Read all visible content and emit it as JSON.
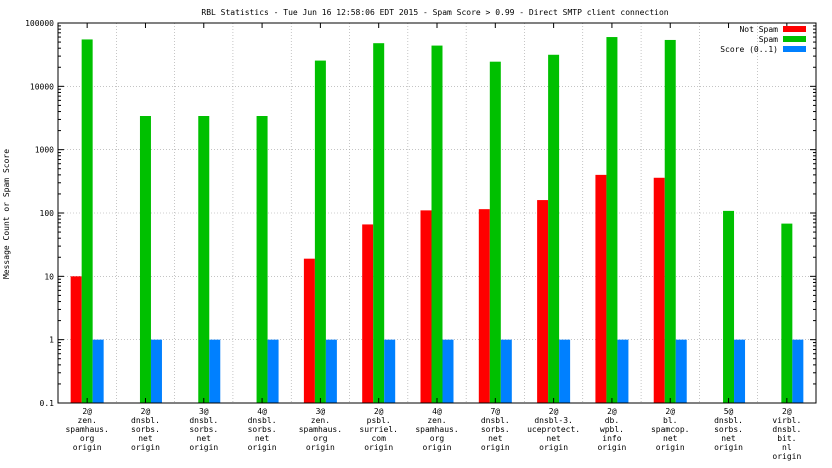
{
  "chart_data": {
    "type": "bar",
    "title": "RBL Statistics - Tue Jun 16 12:58:06 EDT 2015 - Spam Score > 0.99 - Direct SMTP client connection",
    "xlabel": "",
    "ylabel": "Message Count or Spam Score",
    "yscale": "log",
    "ylim": [
      0.1,
      100000
    ],
    "yticks": [
      "0.1",
      "1",
      "10",
      "100",
      "1000",
      "10000",
      "100000"
    ],
    "grid": true,
    "legend_position": "top-right",
    "categories": [
      [
        "2@",
        "zen.",
        "spamhaus.",
        "org",
        "origin"
      ],
      [
        "2@",
        "dnsbl.",
        "sorbs.",
        "net",
        "origin"
      ],
      [
        "3@",
        "dnsbl.",
        "sorbs.",
        "net",
        "origin"
      ],
      [
        "4@",
        "dnsbl.",
        "sorbs.",
        "net",
        "origin"
      ],
      [
        "3@",
        "zen.",
        "spamhaus.",
        "org",
        "origin"
      ],
      [
        "2@",
        "psbl.",
        "surriel.",
        "com",
        "origin"
      ],
      [
        "4@",
        "zen.",
        "spamhaus.",
        "org",
        "origin"
      ],
      [
        "7@",
        "dnsbl.",
        "sorbs.",
        "net",
        "origin"
      ],
      [
        "2@",
        "dnsbl-3.",
        "uceprotect.",
        "net",
        "origin"
      ],
      [
        "2@",
        "db.",
        "wpbl.",
        "info",
        "origin"
      ],
      [
        "2@",
        "bl.",
        "spamcop.",
        "net",
        "origin"
      ],
      [
        "5@",
        "dnsbl.",
        "sorbs.",
        "net",
        "origin"
      ],
      [
        "2@",
        "virbl.",
        "dnsbl.",
        "bit.",
        "nl",
        "origin"
      ]
    ],
    "series": [
      {
        "name": "Not Spam",
        "color": "#ff0000",
        "values": [
          10,
          null,
          null,
          null,
          19,
          66,
          110,
          115,
          160,
          400,
          360,
          null,
          null
        ]
      },
      {
        "name": "Spam",
        "color": "#00c000",
        "values": [
          55000,
          3400,
          3400,
          3400,
          25500,
          48000,
          44000,
          24500,
          31500,
          60000,
          54000,
          108,
          68
        ]
      },
      {
        "name": "Score (0..1)",
        "color": "#0080ff",
        "values": [
          1,
          1,
          1,
          1,
          1,
          1,
          1,
          1,
          1,
          1,
          1,
          1,
          1
        ]
      }
    ]
  }
}
